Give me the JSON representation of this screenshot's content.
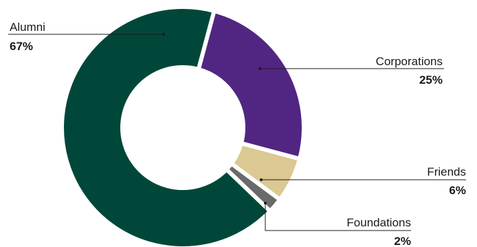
{
  "chart_data": {
    "type": "pie",
    "variant": "donut",
    "title": "",
    "legend": "none (callout labels beside slices)",
    "slices": [
      {
        "label": "Alumni",
        "value": 67,
        "display_value": "67%",
        "color": "#00473a"
      },
      {
        "label": "Corporations",
        "value": 25,
        "display_value": "25%",
        "color": "#512682"
      },
      {
        "label": "Friends",
        "value": 6,
        "display_value": "6%",
        "color": "#dbc892"
      },
      {
        "label": "Foundations",
        "value": 2,
        "display_value": "2%",
        "color": "#6a6a6a"
      }
    ]
  },
  "colors": {
    "background": "#ffffff",
    "text": "#1a1a1a",
    "slice_separator": "#ffffff"
  }
}
